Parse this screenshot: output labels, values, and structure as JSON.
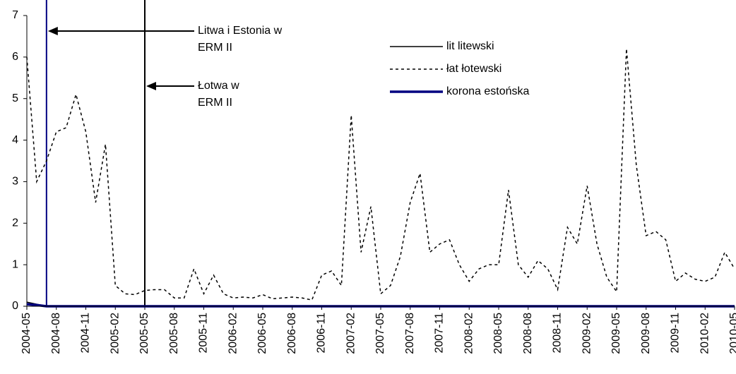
{
  "chart_data": {
    "type": "line",
    "x": [
      "2004-05",
      "2004-06",
      "2004-07",
      "2004-08",
      "2004-09",
      "2004-10",
      "2004-11",
      "2004-12",
      "2005-01",
      "2005-02",
      "2005-03",
      "2005-04",
      "2005-05",
      "2005-06",
      "2005-07",
      "2005-08",
      "2005-09",
      "2005-10",
      "2005-11",
      "2005-12",
      "2006-01",
      "2006-02",
      "2006-03",
      "2006-04",
      "2006-05",
      "2006-06",
      "2006-07",
      "2006-08",
      "2006-09",
      "2006-10",
      "2006-11",
      "2006-12",
      "2007-01",
      "2007-02",
      "2007-03",
      "2007-04",
      "2007-05",
      "2007-06",
      "2007-07",
      "2007-08",
      "2007-09",
      "2007-10",
      "2007-11",
      "2007-12",
      "2008-01",
      "2008-02",
      "2008-03",
      "2008-04",
      "2008-05",
      "2008-06",
      "2008-07",
      "2008-08",
      "2008-09",
      "2008-10",
      "2008-11",
      "2008-12",
      "2009-01",
      "2009-02",
      "2009-03",
      "2009-04",
      "2009-05",
      "2009-06",
      "2009-07",
      "2009-08",
      "2009-09",
      "2009-10",
      "2009-11",
      "2009-12",
      "2010-01",
      "2010-02",
      "2010-03",
      "2010-04",
      "2010-05"
    ],
    "series": [
      {
        "name": "lit litewski",
        "color": "#000000",
        "style": "solid",
        "width": 1.5,
        "values": [
          0.1,
          0.05,
          0,
          0,
          0,
          0,
          0,
          0,
          0,
          0,
          0,
          0,
          0,
          0,
          0,
          0,
          0,
          0,
          0,
          0,
          0,
          0,
          0,
          0,
          0,
          0,
          0,
          0,
          0,
          0,
          0,
          0,
          0,
          0,
          0,
          0,
          0,
          0,
          0,
          0,
          0,
          0,
          0,
          0,
          0,
          0,
          0,
          0,
          0,
          0,
          0,
          0,
          0,
          0,
          0,
          0,
          0,
          0,
          0,
          0,
          0,
          0,
          0,
          0,
          0,
          0,
          0,
          0,
          0,
          0,
          0,
          0,
          0
        ]
      },
      {
        "name": "łat łotewski",
        "color": "#000000",
        "style": "dashed",
        "width": 1.5,
        "values": [
          6.0,
          3.0,
          3.5,
          4.2,
          4.3,
          5.1,
          4.2,
          2.5,
          3.9,
          0.5,
          0.3,
          0.28,
          0.38,
          0.4,
          0.4,
          0.2,
          0.2,
          0.9,
          0.3,
          0.75,
          0.3,
          0.2,
          0.22,
          0.2,
          0.28,
          0.18,
          0.2,
          0.22,
          0.2,
          0.15,
          0.75,
          0.85,
          0.5,
          4.6,
          1.3,
          2.4,
          0.3,
          0.5,
          1.2,
          2.5,
          3.2,
          1.3,
          1.5,
          1.6,
          1.0,
          0.6,
          0.9,
          1.0,
          1.0,
          2.8,
          1.0,
          0.7,
          1.1,
          0.9,
          0.4,
          1.9,
          1.5,
          2.9,
          1.5,
          0.7,
          0.35,
          6.2,
          3.4,
          1.7,
          1.8,
          1.6,
          0.6,
          0.8,
          0.65,
          0.6,
          0.7,
          1.3,
          0.9
        ]
      },
      {
        "name": "korona estońska",
        "color": "#000080",
        "style": "solid",
        "width": 3.5,
        "values": [
          0.05,
          0.03,
          0,
          0,
          0,
          0,
          0,
          0,
          0,
          0,
          0,
          0,
          0,
          0,
          0,
          0,
          0,
          0,
          0,
          0,
          0,
          0,
          0,
          0,
          0,
          0,
          0,
          0,
          0,
          0,
          0,
          0,
          0,
          0,
          0,
          0,
          0,
          0,
          0,
          0,
          0,
          0,
          0,
          0,
          0,
          0,
          0,
          0,
          0,
          0,
          0,
          0,
          0,
          0,
          0,
          0,
          0,
          0,
          0,
          0,
          0,
          0,
          0,
          0,
          0,
          0,
          0,
          0,
          0,
          0,
          0,
          0,
          0
        ]
      }
    ],
    "xticks": [
      "2004-05",
      "2004-08",
      "2004-11",
      "2005-02",
      "2005-05",
      "2005-08",
      "2005-11",
      "2006-02",
      "2006-05",
      "2006-08",
      "2006-11",
      "2007-02",
      "2007-05",
      "2007-08",
      "2007-11",
      "2008-02",
      "2008-05",
      "2008-08",
      "2008-11",
      "2009-02",
      "2009-05",
      "2009-08",
      "2009-11",
      "2010-02",
      "2010-05"
    ],
    "ylim": [
      0,
      7
    ],
    "yticks": [
      0,
      1,
      2,
      3,
      4,
      5,
      6,
      7
    ],
    "grid": false,
    "legend": "upper right",
    "annotations": [
      {
        "x": "2004-07",
        "color": "#000080",
        "text": [
          "Litwa i Estonia w",
          "ERM II"
        ]
      },
      {
        "x": "2005-05",
        "color": "#000000",
        "text": [
          "Łotwa w",
          "ERM II"
        ]
      }
    ]
  }
}
